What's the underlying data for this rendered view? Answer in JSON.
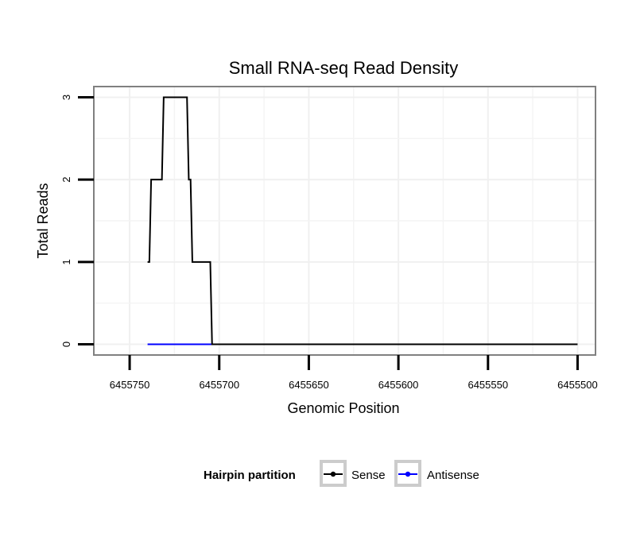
{
  "chart_data": {
    "type": "line",
    "title": "Small RNA-seq Read Density",
    "xlabel": "Genomic Position",
    "ylabel": "Total Reads",
    "xlim": [
      6455770,
      6455490
    ],
    "ylim": [
      -0.13,
      3.13
    ],
    "x_ticks": [
      6455750,
      6455700,
      6455650,
      6455600,
      6455550,
      6455500
    ],
    "x_tick_labels": [
      "6455750",
      "6455700",
      "6455650",
      "6455600",
      "6455550",
      "6455500"
    ],
    "y_ticks": [
      0,
      1,
      2,
      3
    ],
    "y_tick_labels": [
      "0",
      "1",
      "2",
      "3"
    ],
    "grid": true,
    "legend": {
      "title": "Hairpin partition",
      "placement": "bottom",
      "entries": [
        "Sense",
        "Antisense"
      ]
    },
    "series": [
      {
        "name": "Sense",
        "color": "#000000",
        "points": [
          [
            6455740,
            1
          ],
          [
            6455739,
            1
          ],
          [
            6455738,
            2
          ],
          [
            6455732,
            2
          ],
          [
            6455731,
            3
          ],
          [
            6455718,
            3
          ],
          [
            6455717,
            2
          ],
          [
            6455716,
            2
          ],
          [
            6455715,
            1
          ],
          [
            6455705,
            1
          ],
          [
            6455704,
            0
          ],
          [
            6455500,
            0
          ]
        ]
      },
      {
        "name": "Antisense",
        "color": "#0000ff",
        "points": [
          [
            6455740,
            0
          ],
          [
            6455704,
            0
          ]
        ]
      }
    ]
  }
}
